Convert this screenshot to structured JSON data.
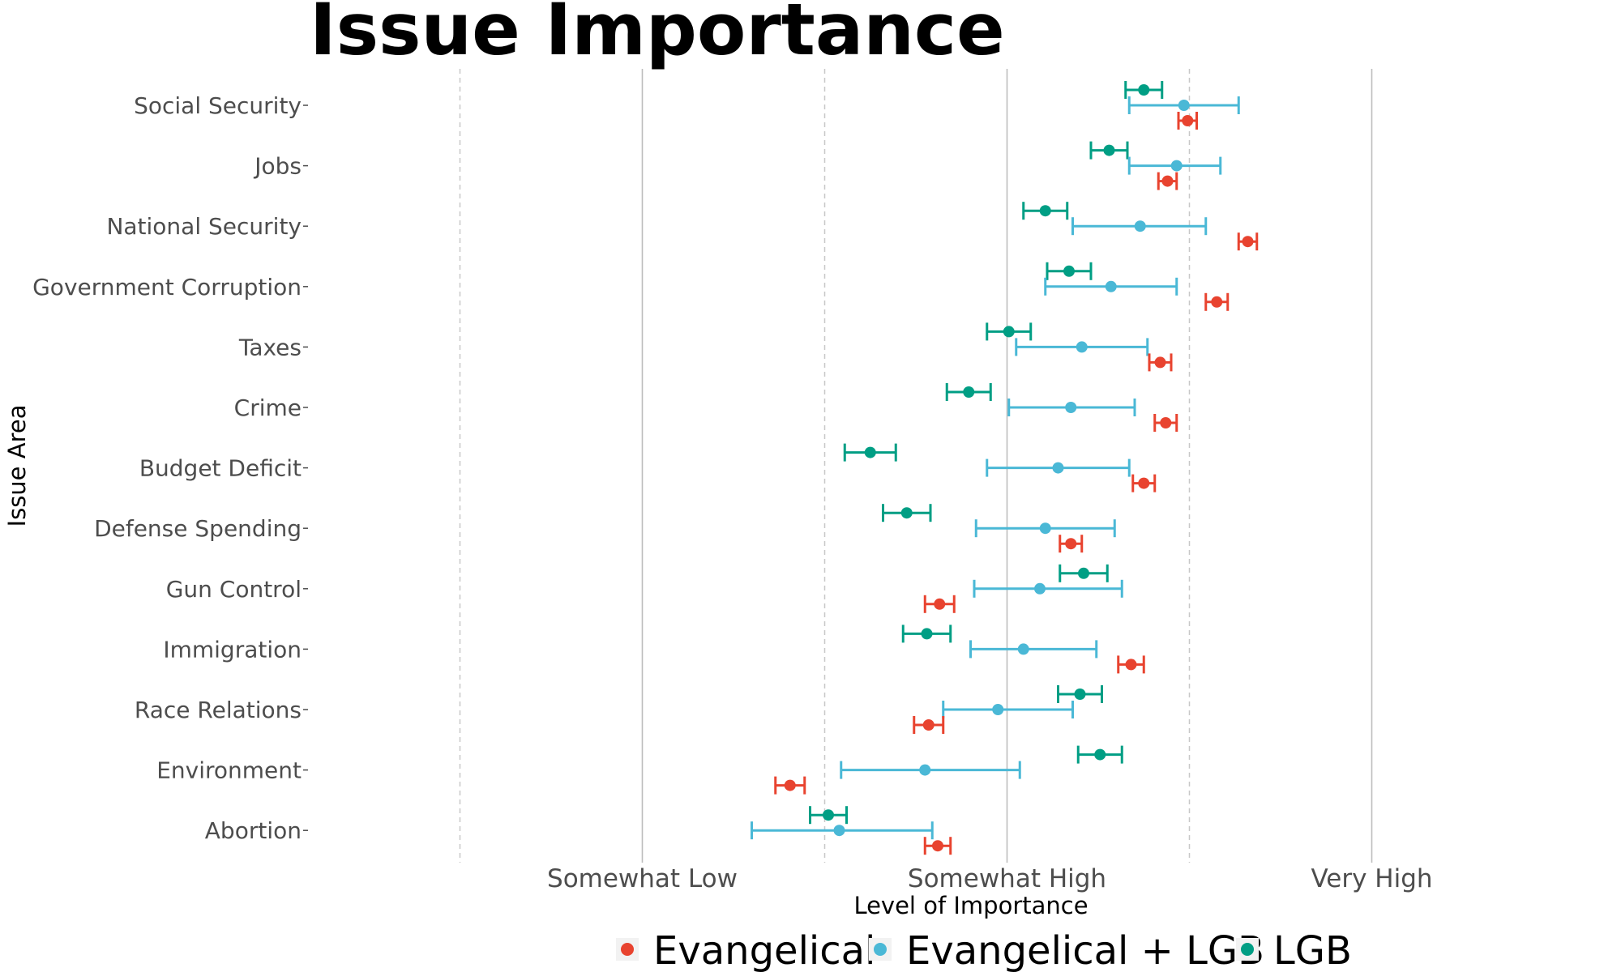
{
  "chart_data": {
    "type": "scatter",
    "title": "Issue Importance",
    "xlabel": "Level of Importance",
    "ylabel": "Issue Area",
    "categories": [
      "Social Security",
      "Jobs",
      "National Security",
      "Government Corruption",
      "Taxes",
      "Crime",
      "Budget Deficit",
      "Defense Spending",
      "Gun Control",
      "Immigration",
      "Race Relations",
      "Environment",
      "Abortion"
    ],
    "x_ticks": [
      {
        "value": 2,
        "label": "Somewhat Low"
      },
      {
        "value": 3,
        "label": "Somewhat High"
      },
      {
        "value": 4,
        "label": "Very High"
      }
    ],
    "x_minor_gridlines": [
      1.5,
      2.5,
      3.5
    ],
    "xlim": [
      1.25,
      4.25
    ],
    "grid": true,
    "legend_position": "bottom",
    "series": [
      {
        "name": "LGB",
        "color": "#009E84",
        "values": [
          3.375,
          3.28,
          3.105,
          3.17,
          3.005,
          2.895,
          2.625,
          2.725,
          3.21,
          2.78,
          3.2,
          3.255,
          2.51
        ],
        "err_low": [
          3.325,
          3.23,
          3.045,
          3.11,
          2.945,
          2.835,
          2.555,
          2.66,
          3.145,
          2.715,
          3.14,
          3.195,
          2.46
        ],
        "err_high": [
          3.425,
          3.33,
          3.165,
          3.23,
          3.065,
          2.955,
          2.695,
          2.79,
          3.275,
          2.845,
          3.26,
          3.315,
          2.56
        ]
      },
      {
        "name": "Evangelical + LGB",
        "color": "#4AB8D6",
        "values": [
          3.485,
          3.465,
          3.365,
          3.285,
          3.205,
          3.175,
          3.14,
          3.105,
          3.09,
          3.045,
          2.975,
          2.775,
          2.54
        ],
        "err_low": [
          3.335,
          3.335,
          3.18,
          3.105,
          3.025,
          3.005,
          2.945,
          2.915,
          2.91,
          2.9,
          2.825,
          2.545,
          2.3
        ],
        "err_high": [
          3.635,
          3.585,
          3.545,
          3.465,
          3.385,
          3.35,
          3.335,
          3.295,
          3.315,
          3.245,
          3.18,
          3.035,
          2.795
        ]
      },
      {
        "name": "Evangelical",
        "color": "#E8432F",
        "values": [
          3.495,
          3.44,
          3.66,
          3.575,
          3.42,
          3.435,
          3.375,
          3.175,
          2.815,
          3.34,
          2.785,
          2.405,
          2.81
        ],
        "err_low": [
          3.47,
          3.415,
          3.635,
          3.545,
          3.39,
          3.405,
          3.345,
          3.145,
          2.775,
          3.305,
          2.745,
          2.365,
          2.775
        ],
        "err_high": [
          3.52,
          3.465,
          3.685,
          3.605,
          3.45,
          3.465,
          3.405,
          3.205,
          2.855,
          3.375,
          2.825,
          2.445,
          2.845
        ]
      }
    ],
    "legend_entries": [
      "Evangelical",
      "Evangelical + LGB",
      "LGB"
    ]
  }
}
